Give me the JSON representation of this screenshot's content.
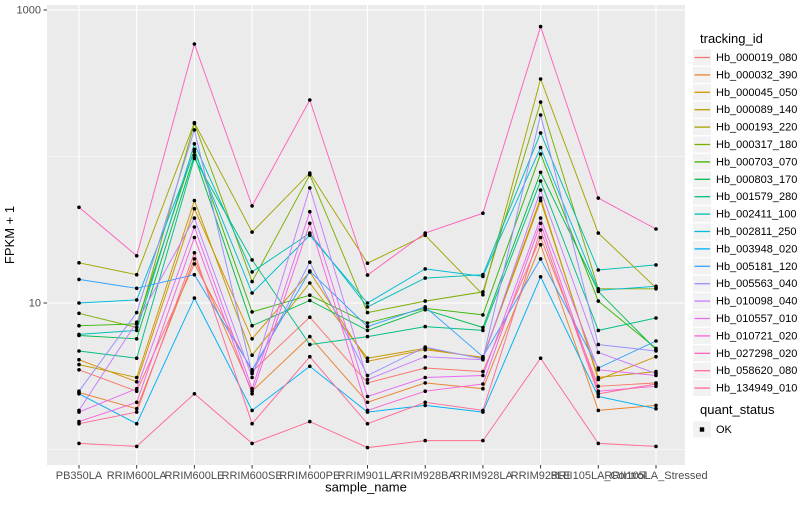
{
  "chart_data": {
    "type": "line",
    "title": "",
    "xlabel": "sample_name",
    "ylabel": "FPKM + 1",
    "y_scale": "log10",
    "y_ticks": [
      10,
      1000
    ],
    "y_tick_labels": [
      "10",
      "1000"
    ],
    "y_minor_gridlines": [
      1,
      100
    ],
    "ylim": [
      0.8,
      1050
    ],
    "grid": true,
    "legend_position": "right",
    "panel_background": "#EBEBEB",
    "gridline_color": "#FFFFFF",
    "tick_color": "#333333",
    "tick_label_color": "#4D4D4D",
    "point_color": "#000000",
    "legend_key_fill": "#F2F2F2",
    "legend_title": "tracking_id",
    "quant_legend_title": "quant_status",
    "quant_legend_items": [
      {
        "label": "OK"
      }
    ],
    "categories": [
      "PB350LA",
      "RRIM600LA",
      "RRIM600LE",
      "RRIM600SE",
      "RRIM600PE",
      "RRIM901LA",
      "RRIM928BA",
      "RRIM928LA",
      "RRIM928LE",
      "RRII105LA_Control",
      "RRII105LA_Stressed"
    ],
    "series": [
      {
        "name": "Hb_000019_080",
        "color": "#F8766D",
        "values": [
          3.5,
          2.5,
          18.5,
          3.4,
          8.0,
          2.85,
          3.6,
          3.4,
          28,
          2.7,
          2.85
        ]
      },
      {
        "name": "Hb_000032_390",
        "color": "#EA8331",
        "values": [
          2.45,
          1.9,
          20,
          2.5,
          5.9,
          2.1,
          2.85,
          2.6,
          25,
          1.85,
          2.0
        ]
      },
      {
        "name": "Hb_000045_050",
        "color": "#D89000",
        "values": [
          4.1,
          2.9,
          44,
          5.7,
          16.3,
          4.0,
          4.8,
          4.25,
          52,
          3.0,
          4.3
        ]
      },
      {
        "name": "Hb_000089_140",
        "color": "#C09B00",
        "values": [
          3.8,
          3.1,
          50,
          4.4,
          13.7,
          4.2,
          4.9,
          4.2,
          50,
          3.1,
          3.4
        ]
      },
      {
        "name": "Hb_000193_220",
        "color": "#A3A500",
        "values": [
          18.8,
          15.6,
          170,
          30.5,
          77,
          18.7,
          29,
          11.4,
          338,
          30,
          12.7
        ]
      },
      {
        "name": "Hb_000317_180",
        "color": "#7CAE00",
        "values": [
          8.5,
          6.8,
          168,
          14,
          75,
          8.6,
          10.3,
          11.9,
          235,
          12.5,
          12.5
        ]
      },
      {
        "name": "Hb_000703_070",
        "color": "#39B600",
        "values": [
          7.0,
          7.2,
          112,
          8.7,
          11.3,
          7.3,
          9.2,
          8.3,
          104,
          10.3,
          4.9
        ]
      },
      {
        "name": "Hb_000803_170",
        "color": "#00BB4E",
        "values": [
          6.0,
          5.7,
          102,
          7.0,
          10.4,
          6.5,
          9.0,
          6.8,
          78,
          12.0,
          4.8
        ]
      },
      {
        "name": "Hb_001579_280",
        "color": "#00C087",
        "values": [
          4.7,
          4.2,
          97,
          19.7,
          5.2,
          5.9,
          6.9,
          6.5,
          68,
          6.5,
          7.9
        ]
      },
      {
        "name": "Hb_002411_100",
        "color": "#00C0B8",
        "values": [
          6.1,
          6.5,
          122,
          16.3,
          30,
          9.4,
          14.8,
          15.6,
          145,
          16.8,
          18.2
        ]
      },
      {
        "name": "Hb_002811_250",
        "color": "#00BCD8",
        "values": [
          10,
          10.5,
          108,
          11.7,
          29,
          10.0,
          17.1,
          15.2,
          115,
          12.2,
          13.0
        ]
      },
      {
        "name": "Hb_003948_020",
        "color": "#00B0F6",
        "values": [
          2.4,
          1.5,
          10.8,
          1.85,
          3.7,
          1.8,
          2.0,
          1.8,
          15.1,
          2.3,
          1.9
        ]
      },
      {
        "name": "Hb_005181_120",
        "color": "#35A2FF",
        "values": [
          14.5,
          12.6,
          15.6,
          3.5,
          16.5,
          6.9,
          9.4,
          4.3,
          20,
          3.6,
          5.5
        ]
      },
      {
        "name": "Hb_005563_040",
        "color": "#9590FF",
        "values": [
          2.5,
          8.6,
          152,
          3.3,
          19,
          3.2,
          5.0,
          4.15,
          192,
          5.2,
          4.7
        ]
      },
      {
        "name": "Hb_010098_040",
        "color": "#C77CFF",
        "values": [
          1.85,
          7.4,
          38,
          3.1,
          61,
          3.0,
          4.3,
          4.1,
          59,
          4.6,
          3.3
        ]
      },
      {
        "name": "Hb_010557_010",
        "color": "#E76BF3",
        "values": [
          1.8,
          2.6,
          33,
          2.6,
          42,
          2.3,
          3.1,
          3.2,
          38,
          3.5,
          3.2
        ]
      },
      {
        "name": "Hb_010721_020",
        "color": "#FA62DB",
        "values": [
          1.55,
          2.1,
          28,
          2.4,
          35,
          1.85,
          2.5,
          2.8,
          35,
          2.5,
          2.7
        ]
      },
      {
        "name": "Hb_027298_020",
        "color": "#FF62BC",
        "values": [
          45,
          21,
          586,
          46,
          243,
          15.5,
          30,
          41,
          770,
          52,
          32
        ]
      },
      {
        "name": "Hb_058620_080",
        "color": "#FF6A98",
        "values": [
          1.5,
          1.8,
          22,
          1.5,
          4.3,
          1.5,
          2.1,
          1.85,
          31.5,
          2.4,
          2.8
        ]
      },
      {
        "name": "Hb_134949_010",
        "color": "#FF6C91",
        "values": [
          1.1,
          1.05,
          2.4,
          1.1,
          1.55,
          1.03,
          1.15,
          1.15,
          4.2,
          1.1,
          1.05
        ]
      }
    ]
  }
}
